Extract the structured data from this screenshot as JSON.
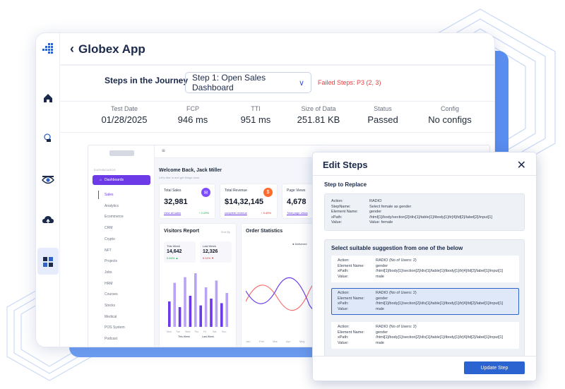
{
  "app": {
    "title": "Globex App"
  },
  "journey": {
    "label": "Steps in the Journey",
    "selected_step": "Step 1: Open Sales Dashboard",
    "failed_steps": "Failed Steps: P3 (2, 3)"
  },
  "metrics": [
    {
      "label": "Test Date",
      "value": "01/28/2025"
    },
    {
      "label": "FCP",
      "value": "946 ms"
    },
    {
      "label": "TTI",
      "value": "951 ms"
    },
    {
      "label": "Size of Data",
      "value": "251.81 KB"
    },
    {
      "label": "Status",
      "value": "Passed"
    },
    {
      "label": "Config",
      "value": "No configs"
    }
  ],
  "preview": {
    "sidebar_caption": "DASHBOARDS",
    "dashboards_label": "Dashboards",
    "items": [
      "Sales",
      "Analytics",
      "Ecommerce",
      "CRM",
      "Crypto",
      "NFT",
      "Projects",
      "Jobs",
      "HRM",
      "Courses",
      "Stocks",
      "Medical",
      "POS System",
      "Podcast"
    ],
    "welcome": "Welcome Back, Jack Miller",
    "welcome_sub": "Let's dive in and get things done.",
    "cards": [
      {
        "title": "Total Sales",
        "value": "32,981",
        "link": "View all sales",
        "pct": "↑ 0.29%",
        "color": "#7c4dff"
      },
      {
        "title": "Total Revenue",
        "value": "$14,32,145",
        "link": "complete revenue",
        "pct": "↑ 5.45%",
        "color": "#ff6b2c"
      },
      {
        "title": "Page Views",
        "value": "4,678",
        "link": "Total page views",
        "pct": "",
        "color": ""
      }
    ],
    "visitors_title": "Visitors Report",
    "sort_by": "Sort By",
    "this_week": {
      "label": "This Week",
      "value": "14,642",
      "pct": "0.64% ▲"
    },
    "last_week": {
      "label": "Last Week",
      "value": "12,326",
      "pct": "5.11% ▼"
    },
    "day_labels": [
      "Mon",
      "Tue",
      "Wed",
      "Thu",
      "Fri",
      "Sat",
      "Sun"
    ],
    "legend": [
      "This Week",
      "Last Week"
    ],
    "order_title": "Order Statistics",
    "delivered": "Delivered",
    "month_labels": [
      "Jan",
      "Feb",
      "Mar",
      "Apr",
      "May",
      "Jun"
    ],
    "bar_heights": [
      0.45,
      0.78,
      0.35,
      0.88,
      0.55,
      0.95,
      0.38,
      0.7,
      0.5,
      0.82,
      0.42,
      0.6
    ],
    "accent": "#6c3be7"
  },
  "modal": {
    "title": "Edit Steps",
    "replace_heading": "Step to Replace",
    "replace": {
      "Action": "RADIO",
      "StepName": "Select female as gender",
      "Element Name": "gender",
      "xPath": "/html[1]/body/section[2]/div[1]/table[1]/tbody[1]/tr[4]/td[2]/label[2]/input[1]",
      "Value": "Value: female"
    },
    "suggest_heading": "Select suitable suggestion from one of the below",
    "suggestions": [
      {
        "action": "RADIO (No of Users: 2)",
        "element": "gender",
        "xpath": "/html[1]/body[1]/section[2]/div[1]/table[1]/tbody[1]/tr[4]/td[2]/label[1]/input[1]",
        "value": "male",
        "selected": false
      },
      {
        "action": "RADIO (No of Users: 2)",
        "element": "gender",
        "xpath": "/html[1]/body[1]/section[2]/div[1]/table[1]/tbody[1]/tr[4]/td[2]/label[1]/input[1]",
        "value": "male",
        "selected": true
      },
      {
        "action": "RADIO (No of Users: 2)",
        "element": "gender",
        "xpath": "/html[1]/body[1]/section[2]/div[1]/table[1]/tbody[1]/tr[4]/td[2]/label[1]/input[1]",
        "value": "male",
        "selected": false
      }
    ],
    "keys": {
      "action": "Action:",
      "stepname": "StepName:",
      "element": "Element Name:",
      "xpath": "xPath:",
      "value": "Value:"
    },
    "update_button": "Update Step"
  },
  "icons": [
    "logo-icon",
    "home-icon",
    "touch-icon",
    "eye-icon",
    "cloud-upload-icon",
    "grid-icon",
    "chevron-left-icon",
    "chevron-down-icon",
    "close-icon"
  ]
}
